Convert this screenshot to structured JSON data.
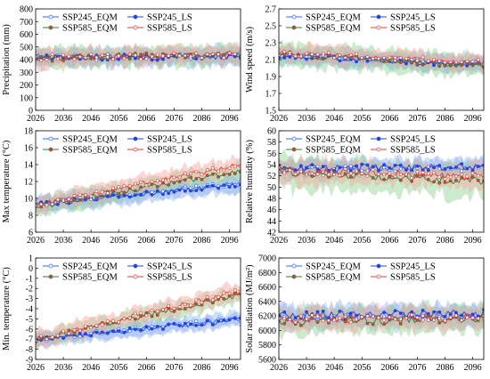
{
  "colors": {
    "ssp245_eqm": "#3366ff",
    "ssp245_ls": "#2244dd",
    "ssp585_eqm": "#2e7d32",
    "ssp585_ls": "#e53935",
    "band_ssp245_eqm": "#8fc3f0",
    "band_ssp245_ls": "#9aaaf5",
    "band_ssp585_eqm": "#8fd08f",
    "band_ssp585_ls": "#f4a6a0"
  },
  "legend_labels": [
    "SSP245_EQM",
    "SSP245_LS",
    "SSP585_EQM",
    "SSP585_LS"
  ],
  "chart_data": [
    {
      "type": "line",
      "ylabel": "Precipitation (mm)",
      "ylim": [
        0,
        800
      ],
      "yticks": [
        "0",
        "100",
        "200",
        "300",
        "400",
        "500",
        "600",
        "700",
        "800"
      ],
      "xticks": [
        "2026",
        "2036",
        "2046",
        "2056",
        "2066",
        "2076",
        "2086",
        "2096"
      ],
      "xlim": [
        2026,
        2100
      ],
      "series": [
        {
          "name": "SSP245_EQM",
          "start": 420,
          "end": 425,
          "noise": 25,
          "band": 70
        },
        {
          "name": "SSP245_LS",
          "start": 418,
          "end": 422,
          "noise": 25,
          "band": 60
        },
        {
          "name": "SSP585_EQM",
          "start": 410,
          "end": 440,
          "noise": 25,
          "band": 75
        },
        {
          "name": "SSP585_LS",
          "start": 415,
          "end": 438,
          "noise": 25,
          "band": 70
        }
      ]
    },
    {
      "type": "line",
      "ylabel": "Wind speed (m/s)",
      "ylim": [
        1.5,
        2.7
      ],
      "yticks": [
        "1.5",
        "1.7",
        "1.9",
        "2.1",
        "2.3",
        "2.5",
        "2.7"
      ],
      "xticks": [
        "2026",
        "2036",
        "2046",
        "2056",
        "2066",
        "2076",
        "2086",
        "2096"
      ],
      "xlim": [
        2026,
        2100
      ],
      "series": [
        {
          "name": "SSP245_EQM",
          "start": 2.16,
          "end": 2.05,
          "noise": 0.03,
          "band": 0.1
        },
        {
          "name": "SSP245_LS",
          "start": 2.15,
          "end": 2.03,
          "noise": 0.03,
          "band": 0.09
        },
        {
          "name": "SSP585_EQM",
          "start": 2.17,
          "end": 2.02,
          "noise": 0.03,
          "band": 0.13
        },
        {
          "name": "SSP585_LS",
          "start": 2.18,
          "end": 2.07,
          "noise": 0.03,
          "band": 0.1
        }
      ]
    },
    {
      "type": "line",
      "ylabel": "Max temperature (°C)",
      "ylim": [
        6,
        18
      ],
      "yticks": [
        "6",
        "8",
        "10",
        "12",
        "14",
        "16",
        "18"
      ],
      "xticks": [
        "2026",
        "2036",
        "2046",
        "2056",
        "2066",
        "2076",
        "2086",
        "2096"
      ],
      "xlim": [
        2026,
        2100
      ],
      "series": [
        {
          "name": "SSP245_EQM",
          "start": 9.3,
          "end": 11.8,
          "noise": 0.3,
          "band": 1.0
        },
        {
          "name": "SSP245_LS",
          "start": 9.3,
          "end": 11.6,
          "noise": 0.3,
          "band": 0.9
        },
        {
          "name": "SSP585_EQM",
          "start": 9.1,
          "end": 13.2,
          "noise": 0.3,
          "band": 1.1
        },
        {
          "name": "SSP585_LS",
          "start": 9.2,
          "end": 14.0,
          "noise": 0.3,
          "band": 1.0
        }
      ]
    },
    {
      "type": "line",
      "ylabel": "Relative humidity (%)",
      "ylim": [
        42,
        60
      ],
      "yticks": [
        "42",
        "44",
        "46",
        "48",
        "50",
        "52",
        "54",
        "56",
        "58",
        "60"
      ],
      "xticks": [
        "2026",
        "2036",
        "2046",
        "2056",
        "2066",
        "2076",
        "2086",
        "2096"
      ],
      "xlim": [
        2026,
        2100
      ],
      "series": [
        {
          "name": "SSP245_EQM",
          "start": 53.2,
          "end": 53.4,
          "noise": 0.6,
          "band": 1.6
        },
        {
          "name": "SSP245_LS",
          "start": 53.4,
          "end": 53.6,
          "noise": 0.6,
          "band": 1.4
        },
        {
          "name": "SSP585_EQM",
          "start": 52.8,
          "end": 51.0,
          "noise": 0.7,
          "band": 2.8
        },
        {
          "name": "SSP585_LS",
          "start": 53.0,
          "end": 51.8,
          "noise": 0.7,
          "band": 2.0
        }
      ]
    },
    {
      "type": "line",
      "ylabel": "Min. temperature (°C)",
      "ylim": [
        -9,
        1
      ],
      "yticks": [
        "-9",
        "-8",
        "-7",
        "-6",
        "-5",
        "-4",
        "-3",
        "-2",
        "-1",
        "0",
        "1"
      ],
      "xticks": [
        "2026",
        "2036",
        "2046",
        "2056",
        "2066",
        "2076",
        "2086",
        "2096"
      ],
      "xlim": [
        2026,
        2100
      ],
      "series": [
        {
          "name": "SSP245_EQM",
          "start": -7.0,
          "end": -5.0,
          "noise": 0.25,
          "band": 0.7
        },
        {
          "name": "SSP245_LS",
          "start": -7.0,
          "end": -5.1,
          "noise": 0.25,
          "band": 0.6
        },
        {
          "name": "SSP585_EQM",
          "start": -7.1,
          "end": -2.6,
          "noise": 0.25,
          "band": 0.8
        },
        {
          "name": "SSP585_LS",
          "start": -7.0,
          "end": -2.3,
          "noise": 0.25,
          "band": 0.8
        }
      ]
    },
    {
      "type": "line",
      "ylabel": "Solar radiation (MJ/m²)",
      "ylim": [
        5600,
        7000
      ],
      "yticks": [
        "5600",
        "5800",
        "6000",
        "6200",
        "6400",
        "6600",
        "6800",
        "7000"
      ],
      "xticks": [
        "2026",
        "2036",
        "2046",
        "2056",
        "2066",
        "2076",
        "2086",
        "2096"
      ],
      "xlim": [
        2026,
        2100
      ],
      "series": [
        {
          "name": "SSP245_EQM",
          "start": 6180,
          "end": 6200,
          "noise": 60,
          "band": 150
        },
        {
          "name": "SSP245_LS",
          "start": 6200,
          "end": 6230,
          "noise": 60,
          "band": 130
        },
        {
          "name": "SSP585_EQM",
          "start": 6120,
          "end": 6170,
          "noise": 60,
          "band": 170
        },
        {
          "name": "SSP585_LS",
          "start": 6150,
          "end": 6190,
          "noise": 60,
          "band": 150
        }
      ]
    }
  ]
}
